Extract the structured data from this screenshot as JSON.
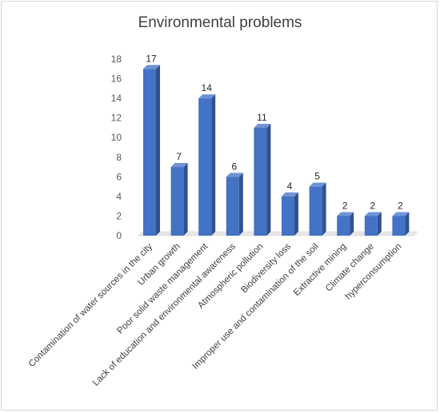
{
  "chart_data": {
    "type": "bar",
    "title": "Environmental problems",
    "xlabel": "",
    "ylabel": "",
    "ylim": [
      0,
      18
    ],
    "yticks": [
      0,
      2,
      4,
      6,
      8,
      10,
      12,
      14,
      16,
      18
    ],
    "grid": false,
    "legend": "none",
    "bar_color": "#4472c4",
    "categories": [
      "Contamination of water sources in the city",
      "Urban growth",
      "Poor solid waste management",
      "Lack of education and environmental awareness",
      "Atmospheric pollution",
      "Biodiversity loss",
      "Improper use and contamination of the soil",
      "Extractive mining",
      "Climate change",
      "hyperconsumption"
    ],
    "values": [
      17,
      7,
      14,
      6,
      11,
      4,
      5,
      2,
      2,
      2
    ]
  }
}
